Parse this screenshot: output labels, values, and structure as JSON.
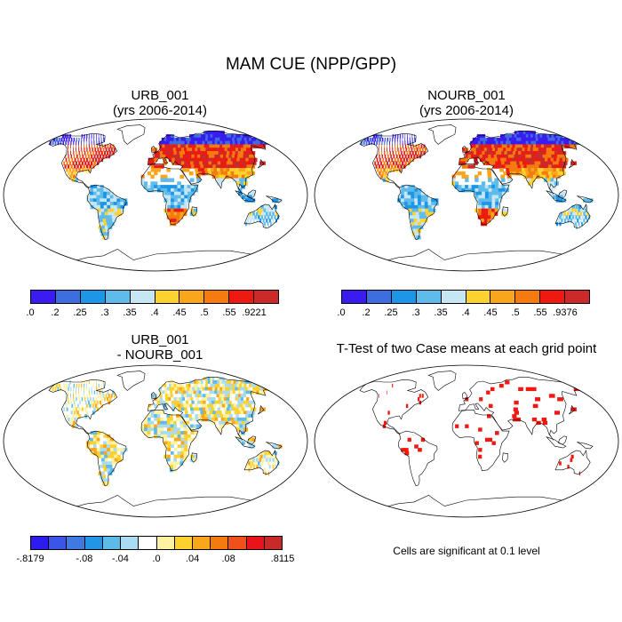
{
  "title": "MAM CUE (NPP/GPP)",
  "panels": [
    {
      "id": "urb",
      "title_lines": [
        "URB_001",
        "(yrs 2006-2014)"
      ]
    },
    {
      "id": "nourb",
      "title_lines": [
        "NOURB_001",
        "(yrs 2006-2014)"
      ]
    },
    {
      "id": "diff",
      "title_lines": [
        "URB_001",
        "- NOURB_001"
      ]
    },
    {
      "id": "ttest",
      "title_lines": [
        "T-Test of two Case means at each grid point"
      ]
    }
  ],
  "colorbars": [
    {
      "panel": "urb",
      "colors": [
        "#3a1cf0",
        "#3e6de0",
        "#1e96e8",
        "#5ebbea",
        "#c7e6f4",
        "#fdd12e",
        "#f9a61d",
        "#f57a10",
        "#ee1a12",
        "#cc2a2a"
      ],
      "labels": [
        ".0",
        ".2",
        ".25",
        ".3",
        ".35",
        ".4",
        ".45",
        ".5",
        ".55",
        ".9221"
      ]
    },
    {
      "panel": "nourb",
      "colors": [
        "#3a1cf0",
        "#3e6de0",
        "#1e96e8",
        "#5ebbea",
        "#c7e6f4",
        "#fdd12e",
        "#f9a61d",
        "#f57a10",
        "#ee1a12",
        "#cc2a2a"
      ],
      "labels": [
        ".0",
        ".2",
        ".25",
        ".3",
        ".35",
        ".4",
        ".45",
        ".5",
        ".55",
        ".9376"
      ]
    },
    {
      "panel": "diff",
      "colors": [
        "#2d1cf0",
        "#3a55e8",
        "#3e7ae2",
        "#2395e6",
        "#5dbbea",
        "#a9dbf2",
        "#ffffff",
        "#fff2a0",
        "#fdd12e",
        "#f9a61d",
        "#f57a10",
        "#f0501a",
        "#e8141a",
        "#c82a2a"
      ],
      "labels": [
        "-.8179",
        "-.08",
        "-.04",
        ".0",
        ".04",
        ".08",
        ".8115"
      ]
    }
  ],
  "chart_data": [
    {
      "type": "heatmap",
      "title": "URB_001",
      "subtitle": "(yrs 2006-2014)",
      "map": "world robinson",
      "legend_placement": "bottom",
      "levels": [
        0,
        0.2,
        0.25,
        0.3,
        0.35,
        0.4,
        0.45,
        0.5,
        0.55,
        0.9221
      ]
    },
    {
      "type": "heatmap",
      "title": "NOURB_001",
      "subtitle": "(yrs 2006-2014)",
      "map": "world robinson",
      "legend_placement": "bottom",
      "levels": [
        0,
        0.2,
        0.25,
        0.3,
        0.35,
        0.4,
        0.45,
        0.5,
        0.55,
        0.9376
      ]
    },
    {
      "type": "heatmap",
      "title": "URB_001 - NOURB_001",
      "map": "world robinson",
      "legend_placement": "bottom",
      "levels": [
        -0.8179,
        -0.08,
        -0.04,
        0,
        0.04,
        0.08,
        0.8115
      ]
    },
    {
      "type": "heatmap",
      "title": "T-Test of two Case means at each grid point",
      "map": "world robinson",
      "significance_level": 0.1,
      "significant_color": "#ee1a12"
    }
  ],
  "note": "Cells are significant at 0.1 level"
}
